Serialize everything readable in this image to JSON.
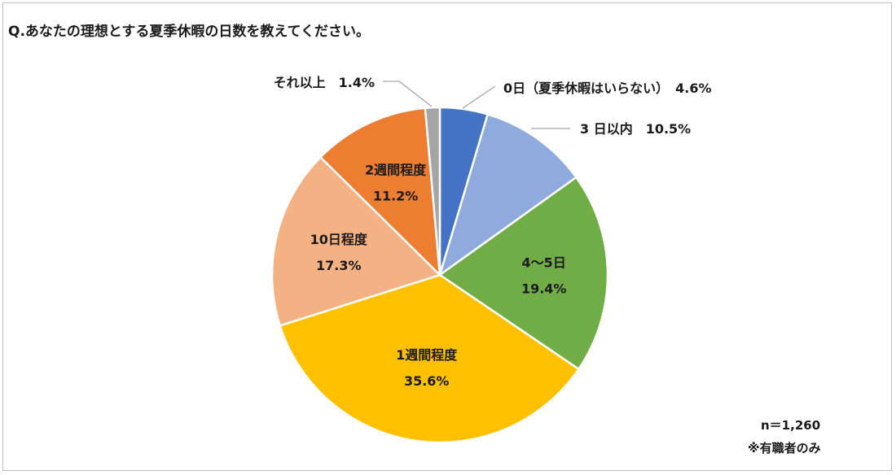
{
  "title": "Q.あなたの理想とする夏季休暇の日数を教えてください。",
  "notes": {
    "sample": "n＝1,260",
    "target": "※有職者のみ"
  },
  "chart_data": {
    "type": "pie",
    "title": "Q.あなたの理想とする夏季休暇の日数を教えてください。",
    "start": "12 o'clock, clockwise",
    "slices": [
      {
        "label": "0日（夏季休暇はいらない）",
        "value": 4.6,
        "value_label": "4.6%",
        "color": "#4472c4",
        "label_placement": "outside"
      },
      {
        "label": "3 日以内",
        "value": 10.5,
        "value_label": "10.5%",
        "color": "#8faadc",
        "label_placement": "outside"
      },
      {
        "label": "4〜5日",
        "value": 19.4,
        "value_label": "19.4%",
        "color": "#70ad47",
        "label_placement": "inside"
      },
      {
        "label": "1週間程度",
        "value": 35.6,
        "value_label": "35.6%",
        "color": "#ffc000",
        "label_placement": "inside"
      },
      {
        "label": "10日程度",
        "value": 17.3,
        "value_label": "17.3%",
        "color": "#f4b183",
        "label_placement": "inside"
      },
      {
        "label": "2週間程度",
        "value": 11.2,
        "value_label": "11.2%",
        "color": "#ed7d31",
        "label_placement": "inside"
      },
      {
        "label": "それ以上",
        "value": 1.4,
        "value_label": "1.4%",
        "color": "#a5a5a5",
        "label_placement": "outside"
      }
    ]
  }
}
